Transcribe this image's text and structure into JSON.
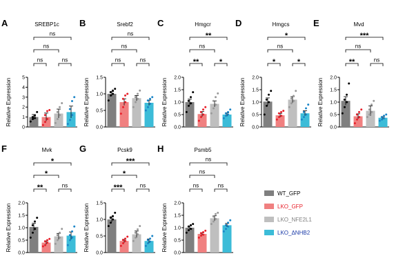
{
  "colors": {
    "background": "#ffffff",
    "frame": "#000000",
    "groups": [
      "#7f7f7f",
      "#f08080",
      "#bfbfbf",
      "#3cbcd8"
    ],
    "dots": [
      "#000000",
      "#e8202a",
      "#9a9a9a",
      "#1c86c8"
    ],
    "legend_text": [
      "#000000",
      "#e8202a",
      "#7f7f7f",
      "#1a3aa8"
    ]
  },
  "legend": {
    "items": [
      {
        "label": "WT_GFP"
      },
      {
        "label": "LKO_GFP"
      },
      {
        "label": "LKO_NFE2L1"
      },
      {
        "label": "LKO_ΔNHB2"
      }
    ]
  },
  "chart_data": [
    {
      "type": "bar",
      "letter": "A",
      "title": "SREBP1c",
      "ylabel": "Relative Expression",
      "ylim": [
        0,
        5
      ],
      "yticks": [
        "0",
        "1",
        "2",
        "3",
        "4",
        "5"
      ],
      "values": [
        1.0,
        1.0,
        1.35,
        1.5
      ],
      "errors": [
        0.25,
        0.4,
        0.45,
        0.6
      ],
      "points": [
        [
          0.55,
          0.8,
          0.9,
          1.0,
          1.15,
          1.5
        ],
        [
          0.2,
          0.5,
          0.8,
          1.2,
          1.6,
          1.7
        ],
        [
          0.4,
          0.8,
          1.2,
          1.5,
          2.0,
          2.4
        ],
        [
          0.3,
          0.7,
          1.2,
          1.8,
          2.6,
          3.0
        ]
      ],
      "comparisons": [
        {
          "a": 0,
          "b": 3,
          "label": "ns"
        },
        {
          "a": 0,
          "b": 2,
          "label": "ns"
        },
        {
          "a": 0,
          "b": 1,
          "label": "ns"
        },
        {
          "a": 2,
          "b": 3,
          "label": "ns"
        }
      ]
    },
    {
      "type": "bar",
      "letter": "B",
      "title": "Srebf2",
      "ylabel": "Relative Expression",
      "ylim": [
        0,
        1.5
      ],
      "yticks": [
        "0.0",
        "0.5",
        "1.0",
        "1.5"
      ],
      "values": [
        1.0,
        0.75,
        0.87,
        0.73
      ],
      "errors": [
        0.07,
        0.1,
        0.08,
        0.08
      ],
      "points": [
        [
          0.8,
          0.95,
          1.0,
          1.05,
          1.1,
          1.15
        ],
        [
          0.4,
          0.6,
          0.75,
          0.85,
          0.95,
          1.0
        ],
        [
          0.6,
          0.75,
          0.85,
          0.9,
          1.0,
          1.1
        ],
        [
          0.5,
          0.6,
          0.7,
          0.8,
          0.85,
          0.9
        ]
      ],
      "comparisons": [
        {
          "a": 0,
          "b": 3,
          "label": "ns"
        },
        {
          "a": 0,
          "b": 2,
          "label": "ns"
        },
        {
          "a": 0,
          "b": 1,
          "label": "ns"
        },
        {
          "a": 2,
          "b": 3,
          "label": "ns"
        }
      ]
    },
    {
      "type": "bar",
      "letter": "C",
      "title": "Hmgcr",
      "ylabel": "Relative Expression",
      "ylim": [
        0,
        2.0
      ],
      "yticks": [
        "0.0",
        "0.5",
        "1.0",
        "1.5",
        "2.0"
      ],
      "values": [
        1.0,
        0.52,
        0.93,
        0.5
      ],
      "errors": [
        0.12,
        0.1,
        0.12,
        0.07
      ],
      "points": [
        [
          0.6,
          0.85,
          0.95,
          1.05,
          1.2,
          1.4
        ],
        [
          0.25,
          0.4,
          0.5,
          0.6,
          0.7,
          0.8
        ],
        [
          0.55,
          0.75,
          0.9,
          1.05,
          1.2,
          1.35
        ],
        [
          0.35,
          0.45,
          0.5,
          0.55,
          0.6,
          0.7
        ]
      ],
      "comparisons": [
        {
          "a": 0,
          "b": 3,
          "label": "**"
        },
        {
          "a": 0,
          "b": 2,
          "label": "ns"
        },
        {
          "a": 0,
          "b": 1,
          "label": "**"
        },
        {
          "a": 2,
          "b": 3,
          "label": "*"
        }
      ]
    },
    {
      "type": "bar",
      "letter": "D",
      "title": "Hmgcs",
      "ylabel": "Relative Expression",
      "ylim": [
        0,
        2.0
      ],
      "yticks": [
        "0.0",
        "0.5",
        "1.0",
        "1.5",
        "2.0"
      ],
      "values": [
        1.02,
        0.47,
        1.1,
        0.55
      ],
      "errors": [
        0.15,
        0.08,
        0.12,
        0.1
      ],
      "points": [
        [
          0.5,
          0.85,
          1.0,
          1.1,
          1.3,
          1.45
        ],
        [
          0.3,
          0.4,
          0.45,
          0.55,
          0.6,
          0.65
        ],
        [
          0.8,
          0.95,
          1.05,
          1.15,
          1.25,
          1.45
        ],
        [
          0.3,
          0.4,
          0.5,
          0.6,
          0.75,
          0.9
        ]
      ],
      "comparisons": [
        {
          "a": 0,
          "b": 3,
          "label": "*"
        },
        {
          "a": 0,
          "b": 2,
          "label": "ns"
        },
        {
          "a": 0,
          "b": 1,
          "label": "*"
        },
        {
          "a": 2,
          "b": 3,
          "label": "*"
        }
      ]
    },
    {
      "type": "bar",
      "letter": "E",
      "title": "Mvd",
      "ylabel": "Relative Expression",
      "ylim": [
        0,
        2.0
      ],
      "yticks": [
        "0.0",
        "0.5",
        "1.0",
        "1.5",
        "2.0"
      ],
      "values": [
        1.05,
        0.43,
        0.65,
        0.37
      ],
      "errors": [
        0.17,
        0.1,
        0.2,
        0.05
      ],
      "points": [
        [
          0.55,
          0.8,
          1.0,
          1.1,
          1.3,
          1.75
        ],
        [
          0.15,
          0.3,
          0.4,
          0.5,
          0.6,
          0.7
        ],
        [
          0.4,
          0.5,
          0.6,
          0.7,
          0.9,
          1.05
        ],
        [
          0.25,
          0.3,
          0.35,
          0.4,
          0.45,
          0.5
        ]
      ],
      "comparisons": [
        {
          "a": 0,
          "b": 3,
          "label": "***"
        },
        {
          "a": 0,
          "b": 2,
          "label": "ns"
        },
        {
          "a": 0,
          "b": 1,
          "label": "**"
        },
        {
          "a": 2,
          "b": 3,
          "label": "ns"
        }
      ]
    },
    {
      "type": "bar",
      "letter": "F",
      "title": "Mvk",
      "ylabel": "Relative Expression",
      "ylim": [
        0,
        2.0
      ],
      "yticks": [
        "0.0",
        "0.5",
        "1.0",
        "1.5",
        "2.0"
      ],
      "values": [
        1.03,
        0.4,
        0.65,
        0.68
      ],
      "errors": [
        0.15,
        0.07,
        0.12,
        0.15
      ],
      "points": [
        [
          0.6,
          0.8,
          0.95,
          1.1,
          1.25,
          1.4
        ],
        [
          0.25,
          0.3,
          0.4,
          0.45,
          0.5,
          0.55
        ],
        [
          0.35,
          0.5,
          0.6,
          0.7,
          0.8,
          0.95
        ],
        [
          0.3,
          0.5,
          0.6,
          0.7,
          0.85,
          1.05
        ]
      ],
      "comparisons": [
        {
          "a": 0,
          "b": 3,
          "label": "*"
        },
        {
          "a": 0,
          "b": 2,
          "label": "*"
        },
        {
          "a": 0,
          "b": 1,
          "label": "**"
        },
        {
          "a": 2,
          "b": 3,
          "label": "ns"
        }
      ]
    },
    {
      "type": "bar",
      "letter": "G",
      "title": "Pcsk9",
      "ylabel": "Relative Expression",
      "ylim": [
        0,
        1.5
      ],
      "yticks": [
        "0.0",
        "0.5",
        "1.0",
        "1.5"
      ],
      "values": [
        1.0,
        0.35,
        0.55,
        0.35
      ],
      "errors": [
        0.08,
        0.05,
        0.1,
        0.06
      ],
      "points": [
        [
          0.8,
          0.9,
          1.0,
          1.05,
          1.1,
          1.2
        ],
        [
          0.2,
          0.28,
          0.35,
          0.38,
          0.42,
          0.48
        ],
        [
          0.35,
          0.45,
          0.55,
          0.6,
          0.7,
          0.8
        ],
        [
          0.2,
          0.28,
          0.33,
          0.38,
          0.42,
          0.5
        ]
      ],
      "comparisons": [
        {
          "a": 0,
          "b": 3,
          "label": "***"
        },
        {
          "a": 0,
          "b": 2,
          "label": "*"
        },
        {
          "a": 0,
          "b": 1,
          "label": "***"
        },
        {
          "a": 2,
          "b": 3,
          "label": "ns"
        }
      ]
    },
    {
      "type": "bar",
      "letter": "H",
      "title": "Psmb5",
      "ylabel": "Relative Expression",
      "ylim": [
        0,
        2.0
      ],
      "yticks": [
        "0.0",
        "0.5",
        "1.0",
        "1.5",
        "2.0"
      ],
      "values": [
        1.0,
        0.75,
        1.38,
        1.1
      ],
      "errors": [
        0.07,
        0.05,
        0.1,
        0.07
      ],
      "points": [
        [
          0.8,
          0.9,
          0.95,
          1.05,
          1.1,
          1.15
        ],
        [
          0.6,
          0.68,
          0.72,
          0.78,
          0.82,
          0.88
        ],
        [
          1.15,
          1.25,
          1.35,
          1.45,
          1.55,
          1.6
        ],
        [
          0.85,
          0.95,
          1.05,
          1.1,
          1.2,
          1.3
        ]
      ],
      "comparisons": [
        {
          "a": 0,
          "b": 3,
          "label": "ns"
        },
        {
          "a": 0,
          "b": 2,
          "label": "ns"
        },
        {
          "a": 0,
          "b": 1,
          "label": "ns"
        },
        {
          "a": 2,
          "b": 3,
          "label": "ns"
        }
      ]
    }
  ]
}
